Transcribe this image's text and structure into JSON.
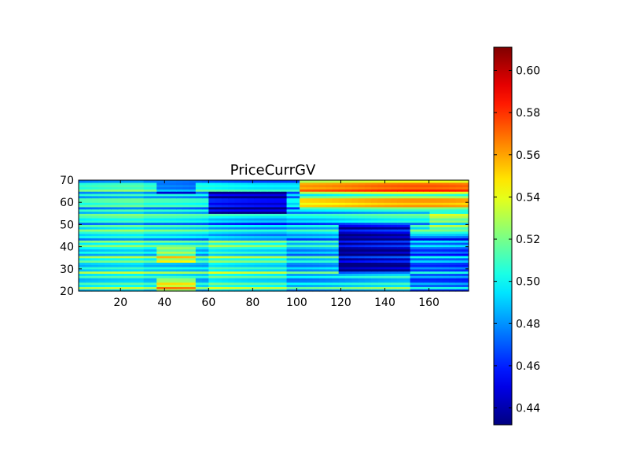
{
  "chart_data": {
    "type": "heatmap",
    "title": "PriceCurrGV",
    "xlabel": "",
    "ylabel": "",
    "xlim": [
      1,
      178
    ],
    "ylim": [
      20,
      70
    ],
    "x_ticks": [
      20,
      40,
      60,
      80,
      100,
      120,
      140,
      160
    ],
    "y_ticks": [
      20,
      30,
      40,
      50,
      60,
      70
    ],
    "colormap": "jet",
    "colorbar": {
      "min": 0.432,
      "max": 0.611,
      "ticks": [
        0.44,
        0.46,
        0.48,
        0.5,
        0.52,
        0.54,
        0.56,
        0.58,
        0.6
      ],
      "tick_labels": [
        "0.44",
        "0.46",
        "0.48",
        "0.50",
        "0.52",
        "0.54",
        "0.56",
        "0.58",
        "0.60"
      ],
      "placement": "right"
    },
    "grid": false,
    "z_regions": [
      {
        "x": [
          1,
          30
        ],
        "y": [
          20,
          70
        ],
        "value": 0.5
      },
      {
        "x": [
          35,
          55
        ],
        "y": [
          20,
          26
        ],
        "value": 0.535
      },
      {
        "x": [
          35,
          55
        ],
        "y": [
          33,
          40
        ],
        "value": 0.525
      },
      {
        "x": [
          35,
          55
        ],
        "y": [
          64,
          69
        ],
        "value": 0.465
      },
      {
        "x": [
          60,
          95
        ],
        "y": [
          55,
          65
        ],
        "value": 0.45
      },
      {
        "x": [
          60,
          95
        ],
        "y": [
          45,
          54
        ],
        "value": 0.49
      },
      {
        "x": [
          60,
          95
        ],
        "y": [
          20,
          44
        ],
        "value": 0.51
      },
      {
        "x": [
          100,
          178
        ],
        "y": [
          64,
          70
        ],
        "value": 0.56
      },
      {
        "x": [
          100,
          178
        ],
        "y": [
          57,
          63
        ],
        "value": 0.545
      },
      {
        "x": [
          120,
          150
        ],
        "y": [
          28,
          50
        ],
        "value": 0.44
      },
      {
        "x": [
          150,
          178
        ],
        "y": [
          20,
          45
        ],
        "value": 0.47
      },
      {
        "x": [
          160,
          178
        ],
        "y": [
          48,
          56
        ],
        "value": 0.515
      }
    ]
  }
}
